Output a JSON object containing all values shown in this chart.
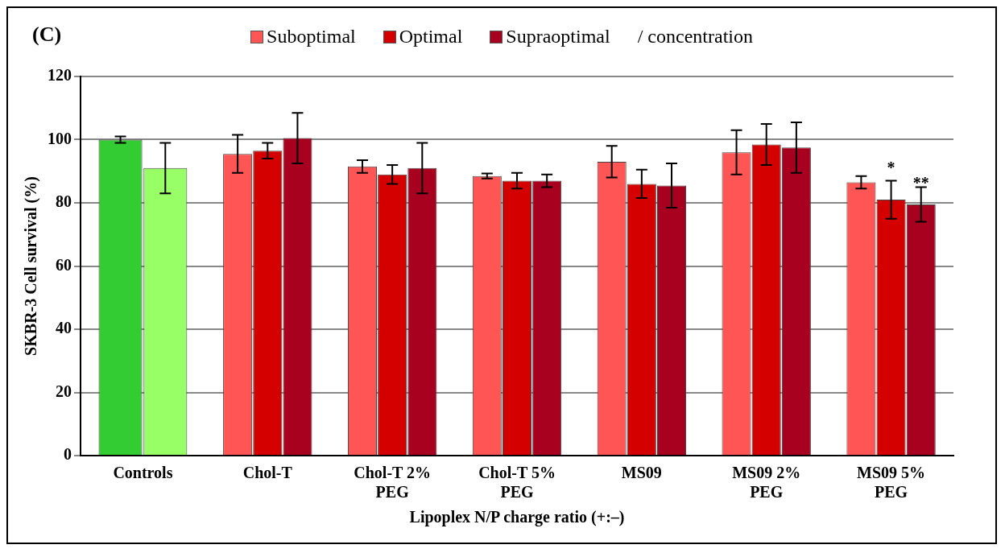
{
  "chart_data": {
    "type": "bar",
    "legend": "top",
    "legend_title": "/ concentration",
    "xlabel": "Lipoplex N/P charge ratio (+:–)",
    "ylabel": "SKBR-3 Cell survival (%)",
    "categories": [
      "Controls",
      "Chol-T",
      "Chol-T 2% PEG",
      "Chol-T 5% PEG",
      "MS09",
      "MS09 2% PEG",
      "MS09 5% PEG"
    ],
    "series": [
      {
        "color": "#33cc33",
        "values": [
          100,
          null,
          null,
          null,
          null,
          null,
          null
        ],
        "errors": [
          1,
          null,
          null,
          null,
          null,
          null,
          null
        ]
      },
      {
        "name": "Suboptimal",
        "color": "#ff5555",
        "values": [
          null,
          95.5,
          91.5,
          88.5,
          93,
          96,
          86.5
        ],
        "errors": [
          null,
          6,
          2,
          0.8,
          5,
          7,
          2
        ]
      },
      {
        "name": "Optimal",
        "color": "#d40000",
        "values": [
          null,
          96.5,
          89,
          87,
          86,
          98.5,
          81
        ],
        "errors": [
          null,
          2.5,
          3,
          2.5,
          4.5,
          6.5,
          6
        ]
      },
      {
        "name": "Supraoptimal",
        "color": "#a8001f",
        "values": [
          null,
          100.5,
          91,
          87,
          85.5,
          97.5,
          79.5
        ],
        "errors": [
          null,
          8,
          8,
          2,
          7,
          8,
          5.5
        ]
      },
      {
        "color": "#99ff66",
        "values": [
          91,
          null,
          null,
          null,
          null,
          null,
          null
        ],
        "errors": [
          8,
          null,
          null,
          null,
          null,
          null,
          null
        ]
      }
    ],
    "ylim": [
      0,
      120
    ],
    "yticks": [
      0,
      20,
      40,
      60,
      80,
      100,
      120
    ],
    "grid": "y",
    "annotations": [
      "(C)",
      {
        "text": "*",
        "x": "MS09 5% PEG",
        "y": 87
      },
      {
        "text": "**",
        "x": "MS09 5% PEG",
        "y": 85
      }
    ]
  }
}
